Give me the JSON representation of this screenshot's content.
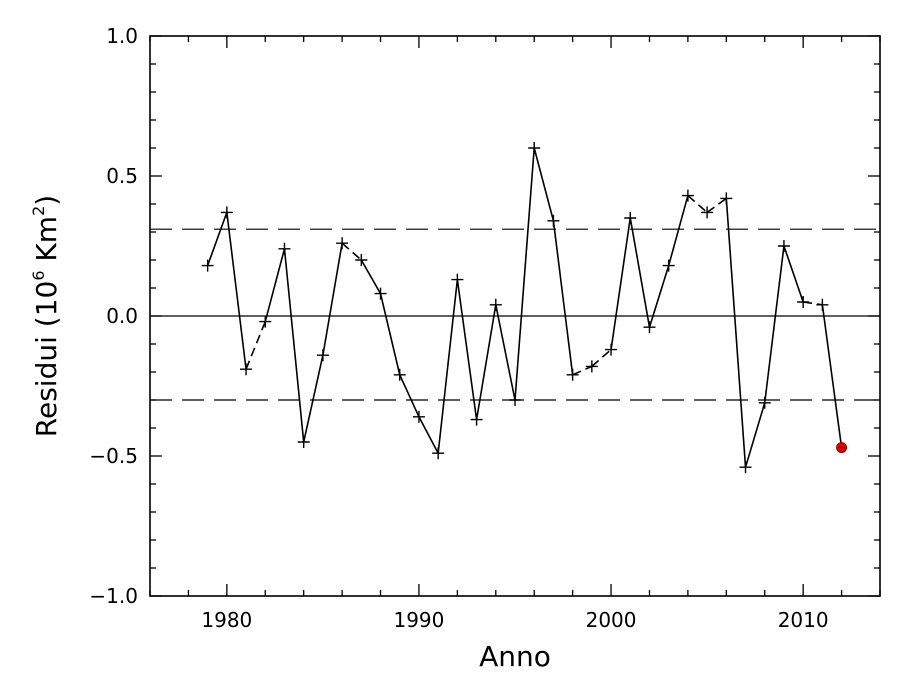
{
  "chart_data": {
    "type": "line",
    "xlabel": "Anno",
    "ylabel": {
      "prefix": "Residui  (10",
      "exp1": "6",
      "middle": " Km",
      "exp2": "2",
      "suffix": ")"
    },
    "xlim": [
      1976,
      2014
    ],
    "ylim": [
      -1.0,
      1.0
    ],
    "x_ticks": [
      1980,
      1990,
      2000,
      2010
    ],
    "x_tick_labels": [
      "1980",
      "1990",
      "2000",
      "2010"
    ],
    "y_ticks": [
      -1.0,
      -0.5,
      0.0,
      0.5,
      1.0
    ],
    "y_tick_labels": [
      "−1.0",
      "−0.5",
      "0.0",
      "0.5",
      "1.0"
    ],
    "reference_lines": [
      {
        "y": 0.0,
        "style": "solid"
      },
      {
        "y": 0.31,
        "style": "dashed"
      },
      {
        "y": -0.3,
        "style": "dashed"
      }
    ],
    "series": [
      {
        "marker": "plus",
        "color": "#000000",
        "x": [
          1979,
          1980,
          1981,
          1982,
          1983,
          1984,
          1985,
          1986,
          1987,
          1988,
          1989,
          1990,
          1991,
          1992,
          1993,
          1994,
          1995,
          1996,
          1997,
          1998,
          1999,
          2000,
          2001,
          2002,
          2003,
          2004,
          2005,
          2006,
          2007,
          2008,
          2009,
          2010,
          2011
        ],
        "y": [
          0.18,
          0.37,
          -0.19,
          -0.02,
          0.24,
          -0.45,
          -0.14,
          0.26,
          0.2,
          0.08,
          -0.21,
          -0.36,
          -0.49,
          0.13,
          -0.37,
          0.04,
          -0.3,
          0.6,
          0.34,
          -0.21,
          -0.18,
          -0.12,
          0.35,
          -0.04,
          0.18,
          0.43,
          0.37,
          0.42,
          -0.54,
          -0.31,
          0.25,
          0.05,
          0.04
        ]
      },
      {
        "marker": "circle",
        "color": "#e00000",
        "x": [
          2012
        ],
        "y": [
          -0.47
        ]
      }
    ],
    "segment_styles": [
      "solid",
      "solid",
      "dashed",
      "solid",
      "solid",
      "solid",
      "solid",
      "dashed",
      "solid",
      "solid",
      "solid",
      "solid",
      "solid",
      "solid",
      "solid",
      "solid",
      "solid",
      "solid",
      "solid",
      "dashed",
      "dashed",
      "solid",
      "solid",
      "solid",
      "solid",
      "dashed",
      "dashed",
      "solid",
      "solid",
      "solid",
      "solid",
      "dashed",
      "solid"
    ]
  }
}
